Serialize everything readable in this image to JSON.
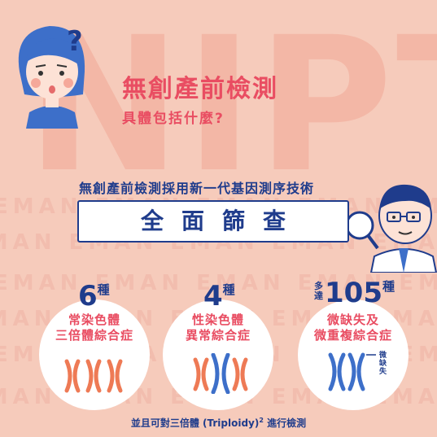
{
  "background_word": "NIPT",
  "watermark": {
    "text": "EMAN",
    "row_text": "EMAN EMAN EMAN EMAN EMAN"
  },
  "header": {
    "title": "無創產前檢測",
    "subtitle": "具體包括什麼?"
  },
  "question_mark": "?",
  "tech_line": "無創產前檢測採用新一代基因測序技術",
  "screening": {
    "label": "全面篩查"
  },
  "categories": [
    {
      "number": "6",
      "unit": "種",
      "prefix": "",
      "lines": [
        "常染色體",
        "三倍體綜合症"
      ],
      "chromosomes": [
        "orange",
        "orange",
        "orange"
      ]
    },
    {
      "number": "4",
      "unit": "種",
      "prefix": "",
      "lines": [
        "性染色體",
        "異常綜合症"
      ],
      "chromosomes": [
        "orange",
        "blue",
        "orange"
      ]
    },
    {
      "number": "105",
      "unit": "種",
      "prefix": "多達",
      "lines": [
        "微缺失及",
        "微重複綜合症"
      ],
      "chromosomes": [
        "blue",
        "blue"
      ],
      "note": "微缺失"
    }
  ],
  "footnote": {
    "text": "並且可對三倍體 (Triploidy)",
    "sup": "2",
    "suffix": " 進行檢測"
  },
  "colors": {
    "background": "#f6cbbb",
    "accent": "#e94d62",
    "navy": "#1f3c8c",
    "chromosome_orange": "#ee7a55",
    "chromosome_blue": "#3d6fc9"
  }
}
